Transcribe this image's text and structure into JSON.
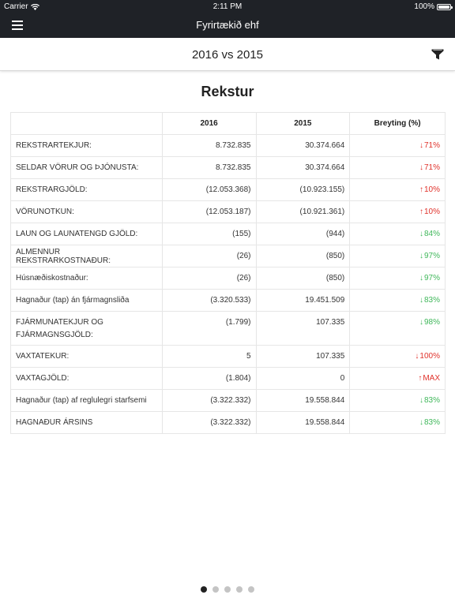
{
  "statusbar": {
    "carrier": "Carrier",
    "time": "2:11 PM",
    "battery": "100%",
    "battery_level": 1.0
  },
  "navbar": {
    "title": "Fyrirtækið ehf"
  },
  "subheader": {
    "period": "2016 vs 2015"
  },
  "section": {
    "title": "Rekstur"
  },
  "table": {
    "headers": {
      "label": "",
      "y2016": "2016",
      "y2015": "2015",
      "change": "Breyting (%)"
    },
    "rows": [
      {
        "label": "REKSTRARTEKJUR:",
        "y2016": "8.732.835",
        "y2015": "30.374.664",
        "arrow": "↓",
        "change": "71%",
        "tone": "up-bad"
      },
      {
        "label": "SELDAR VÖRUR OG ÞJÓNUSTA:",
        "y2016": "8.732.835",
        "y2015": "30.374.664",
        "arrow": "↓",
        "change": "71%",
        "tone": "up-bad"
      },
      {
        "label": "REKSTRARGJÖLD:",
        "y2016": "(12.053.368)",
        "y2015": "(10.923.155)",
        "arrow": "↑",
        "change": "10%",
        "tone": "up-bad"
      },
      {
        "label": "VÖRUNOTKUN:",
        "y2016": "(12.053.187)",
        "y2015": "(10.921.361)",
        "arrow": "↑",
        "change": "10%",
        "tone": "up-bad"
      },
      {
        "label": "LAUN OG LAUNATENGD GJÖLD:",
        "y2016": "(155)",
        "y2015": "(944)",
        "arrow": "↓",
        "change": "84%",
        "tone": "down-good"
      },
      {
        "label": "ALMENNUR REKSTRARKOSTNAÐUR:",
        "y2016": "(26)",
        "y2015": "(850)",
        "arrow": "↓",
        "change": "97%",
        "tone": "down-good"
      },
      {
        "label": "Húsnæðiskostnaður:",
        "y2016": "(26)",
        "y2015": "(850)",
        "arrow": "↓",
        "change": "97%",
        "tone": "down-good"
      },
      {
        "label": "Hagnaður (tap) án fjármagnsliða",
        "y2016": "(3.320.533)",
        "y2015": "19.451.509",
        "arrow": "↓",
        "change": "83%",
        "tone": "down-good"
      },
      {
        "label": "FJÁRMUNATEKJUR OG FJÁRMAGNSGJÖLD:",
        "y2016": "(1.799)",
        "y2015": "107.335",
        "arrow": "↓",
        "change": "98%",
        "tone": "down-good",
        "tall": true
      },
      {
        "label": "VAXTATEKUR:",
        "y2016": "5",
        "y2015": "107.335",
        "arrow": "↓",
        "change": "100%",
        "tone": "up-bad"
      },
      {
        "label": "VAXTAGJÖLD:",
        "y2016": "(1.804)",
        "y2015": "0",
        "arrow": "↑",
        "change": "MAX",
        "tone": "up-bad"
      },
      {
        "label": "Hagnaður (tap) af reglulegri starfsemi",
        "y2016": "(3.322.332)",
        "y2015": "19.558.844",
        "arrow": "↓",
        "change": "83%",
        "tone": "down-good"
      },
      {
        "label": "HAGNAÐUR ÁRSINS",
        "y2016": "(3.322.332)",
        "y2015": "19.558.844",
        "arrow": "↓",
        "change": "83%",
        "tone": "down-good"
      }
    ]
  },
  "pagination": {
    "pages": 5,
    "active": 0
  },
  "colors": {
    "header_bg": "#1f2227",
    "negative": "#e0322b",
    "positive": "#3fb75a"
  },
  "icons": {
    "menu": "hamburger-menu-icon",
    "filter": "filter-funnel-icon",
    "wifi": "wifi-icon",
    "battery": "battery-icon"
  }
}
